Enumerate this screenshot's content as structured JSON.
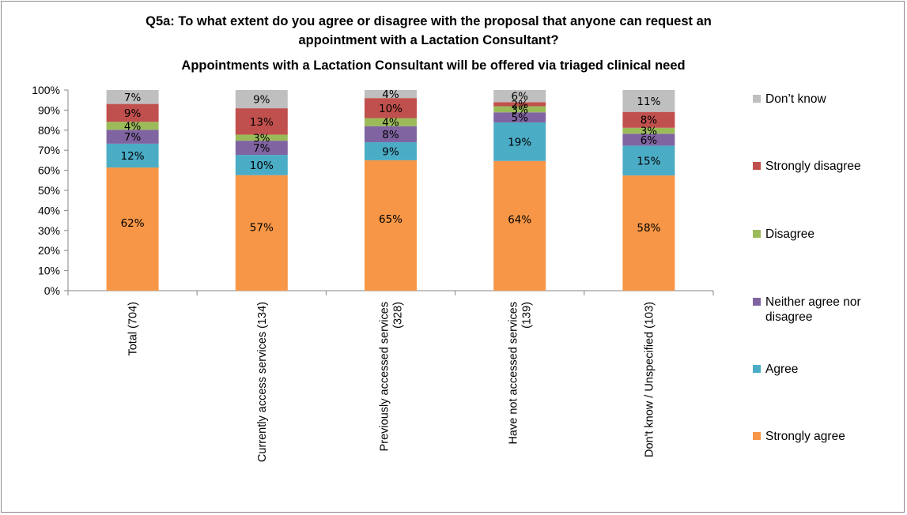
{
  "chart_data": {
    "type": "bar",
    "stacked": true,
    "title_lines": [
      "Q5a: To what extent do you agree or disagree with the proposal that anyone can request an",
      "appointment with a Lactation Consultant?",
      "Appointments with a Lactation Consultant will be offered via triaged clinical need"
    ],
    "categories": [
      [
        "Total (704)"
      ],
      [
        "Currently access services (134)"
      ],
      [
        "Previously accessed services",
        "(328)"
      ],
      [
        "Have not accessed services",
        "(139)"
      ],
      [
        "Don't know / Unspecified (103)"
      ]
    ],
    "ylim": [
      0,
      100
    ],
    "y_ticks": [
      "0%",
      "10%",
      "20%",
      "30%",
      "40%",
      "50%",
      "60%",
      "70%",
      "80%",
      "90%",
      "100%"
    ],
    "legend_position": "right",
    "series": [
      {
        "name": "Strongly agree",
        "color": "#F79646",
        "values": [
          62,
          57,
          65,
          64,
          58
        ],
        "labels": [
          "62%",
          "57%",
          "65%",
          "64%",
          "58%"
        ]
      },
      {
        "name": "Agree",
        "color": "#4BACC6",
        "values": [
          12,
          10,
          9,
          19,
          15
        ],
        "labels": [
          "12%",
          "10%",
          "9%",
          "19%",
          "15%"
        ]
      },
      {
        "name": "Neither agree nor disagree",
        "color": "#8064A2",
        "values": [
          7,
          7,
          8,
          5,
          6
        ],
        "labels": [
          "7%",
          "7%",
          "8%",
          "5%",
          "6%"
        ]
      },
      {
        "name": "Disagree",
        "color": "#9BBB59",
        "values": [
          4,
          3,
          4,
          3,
          3
        ],
        "labels": [
          "4%",
          "3%",
          "4%",
          "3%",
          "3%"
        ]
      },
      {
        "name": "Strongly disagree",
        "color": "#C0504D",
        "values": [
          9,
          13,
          10,
          2,
          8
        ],
        "labels": [
          "9%",
          "13%",
          "10%",
          "2%",
          "8%"
        ]
      },
      {
        "name": "Don’t know",
        "color": "#BFBFBF",
        "values": [
          7,
          9,
          4,
          6,
          11
        ],
        "labels": [
          "7%",
          "9%",
          "4%",
          "6%",
          "11%"
        ]
      }
    ]
  }
}
